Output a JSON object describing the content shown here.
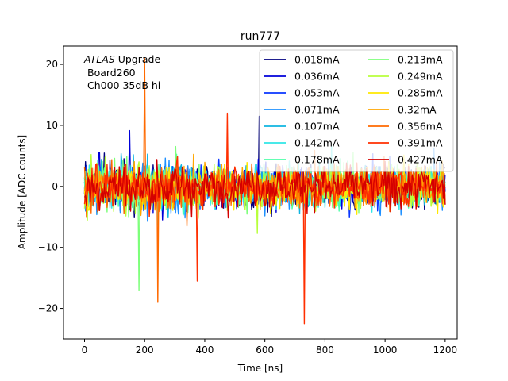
{
  "chart_data": {
    "type": "line",
    "title": "run777",
    "xlabel": "Time [ns]",
    "ylabel": "Amplitude [ADC counts]",
    "xlim": [
      -70,
      1240
    ],
    "ylim": [
      -25,
      23
    ],
    "xticks": [
      0,
      200,
      400,
      600,
      800,
      1000,
      1200
    ],
    "xtick_labels": [
      "0",
      "200",
      "400",
      "600",
      "800",
      "1000",
      "1200"
    ],
    "yticks": [
      -20,
      -10,
      0,
      10,
      20
    ],
    "ytick_labels": [
      "−20",
      "−10",
      "0",
      "10",
      "20"
    ],
    "grid": false,
    "legend_position": "top-right",
    "legend_columns": 2,
    "annotation": {
      "line1_italic": "ATLAS",
      "line1_rest": " Upgrade",
      "line2": "Board260",
      "line3": "Ch000 35dB hi"
    },
    "sampling": {
      "x_start": 0,
      "x_end": 1200,
      "step_ns": 3.125,
      "dense_segment_end": 390,
      "noise_amplitude_dense": 6.0,
      "noise_amplitude_sparse": 5.0
    },
    "series": [
      {
        "name": "0.018mA",
        "color": "#00007f"
      },
      {
        "name": "0.036mA",
        "color": "#0000d9"
      },
      {
        "name": "0.053mA",
        "color": "#0a36ff"
      },
      {
        "name": "0.071mA",
        "color": "#1e90ff"
      },
      {
        "name": "0.107mA",
        "color": "#0fb4e0"
      },
      {
        "name": "0.142mA",
        "color": "#2fe6e6"
      },
      {
        "name": "0.178mA",
        "color": "#4dffa8"
      },
      {
        "name": "0.213mA",
        "color": "#7dff7a"
      },
      {
        "name": "0.249mA",
        "color": "#b8ff3c"
      },
      {
        "name": "0.285mA",
        "color": "#ffe800"
      },
      {
        "name": "0.32mA",
        "color": "#ffa600"
      },
      {
        "name": "0.356mA",
        "color": "#ff6a00"
      },
      {
        "name": "0.391mA",
        "color": "#ff2f00"
      },
      {
        "name": "0.427mA",
        "color": "#d40000"
      }
    ],
    "notable_peaks": [
      {
        "x": 200,
        "y": 21.0,
        "series": "0.356mA"
      },
      {
        "x": 730,
        "y": -22.5,
        "series": "0.391mA"
      },
      {
        "x": 243,
        "y": -19.0,
        "series": "0.356mA"
      },
      {
        "x": 180,
        "y": -17.0,
        "series": "0.213mA"
      },
      {
        "x": 375,
        "y": -15.5,
        "series": "0.391mA"
      },
      {
        "x": 475,
        "y": 12.0,
        "series": "0.391mA"
      },
      {
        "x": 580,
        "y": 11.5,
        "series": "0.018mA"
      }
    ]
  }
}
